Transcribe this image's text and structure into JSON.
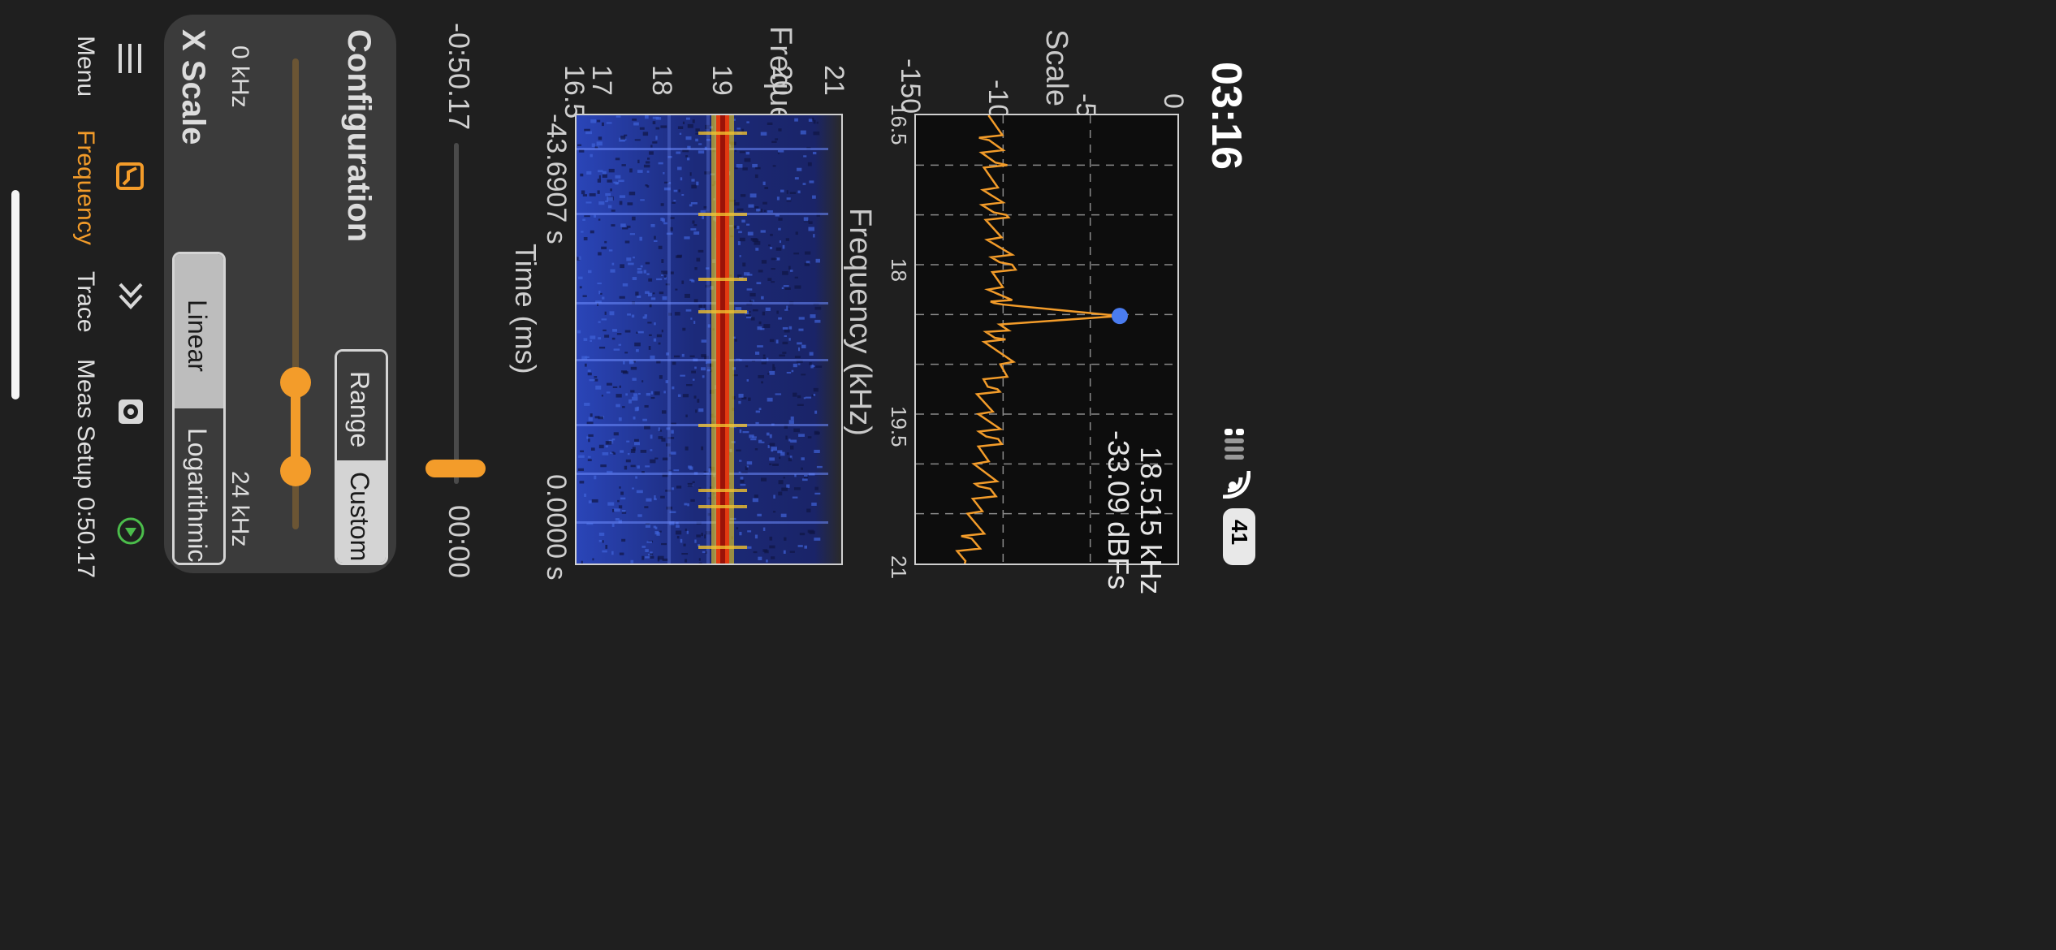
{
  "status_bar": {
    "time": "03:16",
    "battery": "41"
  },
  "spectrum": {
    "ylabel": "Scale (dBFs)",
    "y_ticks": [
      "-150",
      "-100",
      "-50",
      "0"
    ],
    "x_ticks": [
      "16.5",
      "18",
      "19.5",
      "21"
    ],
    "xlabel": "Frequency (kHz)",
    "marker_freq": "18.515 kHz",
    "marker_level": "-33.09 dBFs",
    "line_color": "#f39c2a",
    "marker_color": "#4a7cf0"
  },
  "spectrogram": {
    "ylabel": "Frequency (kHz)",
    "y_ticks": [
      "16.5",
      "17",
      "18",
      "19",
      "20",
      "21"
    ],
    "xlabel": "Time (ms)",
    "time_start": "-43.6907 s",
    "time_end": "0.0000 s"
  },
  "time_scrubber": {
    "start": "-0:50.17",
    "end": "00:00"
  },
  "config_panel": {
    "title": "Configuration",
    "range_label": "Range",
    "custom_label": "Custom",
    "slider_min": "0 kHz",
    "slider_max": "24 kHz",
    "xscale_title": "X Scale",
    "linear_label": "Linear",
    "log_label": "Logarithmic"
  },
  "tab_bar": {
    "menu": "Menu",
    "frequency": "Frequency",
    "trace": "Trace",
    "meas_setup": "Meas Setup",
    "run_time": "0:50.17"
  },
  "chart_data": [
    {
      "type": "line",
      "ylabel": "Scale (dBFs)",
      "xlabel": "Frequency (kHz)",
      "xlim": [
        16.5,
        21
      ],
      "ylim": [
        -150,
        0
      ],
      "x_ticks": [
        16.5,
        18,
        19.5,
        21
      ],
      "y_ticks": [
        -150,
        -100,
        -50,
        0
      ],
      "grid": true,
      "series": [
        {
          "x": [
            16.5,
            16.75,
            17.0,
            17.25,
            17.5,
            17.75,
            18.0,
            18.25,
            18.4,
            18.515,
            18.6,
            18.75,
            19.0,
            19.25,
            19.5,
            19.75,
            20.0,
            20.25,
            20.5,
            20.75,
            21.0
          ],
          "values": [
            -102,
            -108,
            -104,
            -110,
            -103,
            -106,
            -98,
            -104,
            -100,
            -33.09,
            -102,
            -105,
            -100,
            -108,
            -111,
            -106,
            -112,
            -109,
            -114,
            -118,
            -122
          ]
        }
      ],
      "marker": {
        "x": 18.515,
        "y": -33.09
      }
    }
  ]
}
